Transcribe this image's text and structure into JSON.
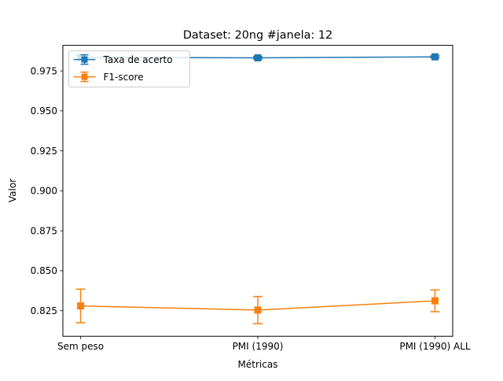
{
  "chart_data": {
    "type": "line",
    "title": "Dataset: 20ng #janela: 12",
    "xlabel": "Métricas",
    "ylabel": "Valor",
    "categories": [
      "Sem peso",
      "PMI (1990)",
      "PMI (1990) ALL"
    ],
    "ylim": [
      0.809,
      0.991
    ],
    "yticks": [
      0.825,
      0.85,
      0.875,
      0.9,
      0.925,
      0.95,
      0.975
    ],
    "ytick_labels": [
      "0.825",
      "0.850",
      "0.875",
      "0.900",
      "0.925",
      "0.950",
      "0.975"
    ],
    "grid": false,
    "legend_position": "top-left",
    "series": [
      {
        "name": "Taxa de acerto",
        "color": "#1f77b4",
        "marker": "square",
        "values": [
          0.9835,
          0.9832,
          0.9838
        ],
        "errors": [
          0.0015,
          0.0008,
          0.0006
        ]
      },
      {
        "name": "F1-score",
        "color": "#ff7f0e",
        "marker": "square",
        "values": [
          0.828,
          0.8254,
          0.8312
        ],
        "errors": [
          0.0105,
          0.0085,
          0.0068
        ]
      }
    ]
  }
}
